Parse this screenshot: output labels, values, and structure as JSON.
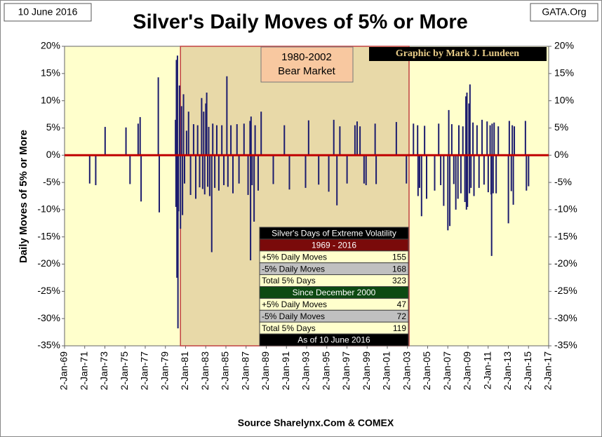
{
  "chart_data": {
    "type": "spike",
    "title": "Silver's Daily Moves of 5% or More",
    "date_label": "10 June 2016",
    "site_label": "GATA.Org",
    "credit": "Graphic by Mark J. Lundeen",
    "source": "Source Sharelynx.Com & COMEX",
    "ylabel": "Daily Moves of 5% or More",
    "bear_market": {
      "line1": "1980-2002",
      "line2": "Bear Market",
      "start": "1980-07-01",
      "end": "2003-03-01",
      "color": "#e8d9a8"
    },
    "color": "#1c1c6e",
    "zero_color": "#c00000",
    "background": "#ffffcc",
    "grid": false,
    "xlim": [
      "1969-01-02",
      "2017-01-02"
    ],
    "xticks": [
      "1969-01-02",
      "1971-01-02",
      "1973-01-02",
      "1975-01-02",
      "1977-01-02",
      "1979-01-02",
      "1981-01-02",
      "1983-01-02",
      "1985-01-02",
      "1987-01-02",
      "1989-01-02",
      "1991-01-02",
      "1993-01-02",
      "1995-01-02",
      "1997-01-02",
      "1999-01-02",
      "2001-01-02",
      "2003-01-02",
      "2005-01-02",
      "2007-01-02",
      "2009-01-02",
      "2011-01-02",
      "2013-01-02",
      "2015-01-02",
      "2017-01-02"
    ],
    "xtick_labels": [
      "2-Jan-69",
      "2-Jan-71",
      "2-Jan-73",
      "2-Jan-75",
      "2-Jan-77",
      "2-Jan-79",
      "2-Jan-81",
      "2-Jan-83",
      "2-Jan-85",
      "2-Jan-87",
      "2-Jan-89",
      "2-Jan-91",
      "2-Jan-93",
      "2-Jan-95",
      "2-Jan-97",
      "2-Jan-99",
      "2-Jan-01",
      "2-Jan-03",
      "2-Jan-05",
      "2-Jan-07",
      "2-Jan-09",
      "2-Jan-11",
      "2-Jan-13",
      "2-Jan-15",
      "2-Jan-17"
    ],
    "ylim": [
      -35,
      20
    ],
    "yticks": [
      {
        "value": 20,
        "label": "20%"
      },
      {
        "value": 15,
        "label": "15%"
      },
      {
        "value": 10,
        "label": "10%"
      },
      {
        "value": 5,
        "label": "5%"
      },
      {
        "value": 0,
        "label": "0%"
      },
      {
        "value": -5,
        "label": "-5%"
      },
      {
        "value": -10,
        "label": "-10%"
      },
      {
        "value": -15,
        "label": "-15%"
      },
      {
        "value": -20,
        "label": "-20%"
      },
      {
        "value": -25,
        "label": "-25%"
      },
      {
        "value": -30,
        "label": "-30%"
      },
      {
        "value": -35,
        "label": "-35%"
      }
    ],
    "x": [
      "1971-07-01",
      "1972-02-05",
      "1973-01-10",
      "1975-02-05",
      "1975-07-01",
      "1976-04-20",
      "1976-07-01",
      "1976-08-05",
      "1978-04-20",
      "1978-05-25",
      "1980-01-03",
      "1980-01-21",
      "1980-02-06",
      "1980-02-25",
      "1980-03-14",
      "1980-04-01",
      "1980-04-20",
      "1980-05-26",
      "1980-07-01",
      "1980-08-07",
      "1980-09-13",
      "1980-10-19",
      "1980-11-25",
      "1981-02-06",
      "1981-04-20",
      "1981-07-01",
      "1981-10-19",
      "1982-01-05",
      "1982-03-15",
      "1982-05-26",
      "1982-08-07",
      "1982-09-13",
      "1982-10-19",
      "1982-11-25",
      "1983-01-05",
      "1983-02-06",
      "1983-03-15",
      "1983-04-20",
      "1983-05-26",
      "1983-08-07",
      "1983-09-13",
      "1983-11-25",
      "1984-02-06",
      "1984-04-20",
      "1984-08-07",
      "1984-10-19",
      "1985-02-06",
      "1985-03-15",
      "1985-07-01",
      "1985-09-13",
      "1986-02-06",
      "1986-04-20",
      "1986-10-19",
      "1987-03-15",
      "1987-05-26",
      "1987-06-13",
      "1987-07-01",
      "1987-08-07",
      "1987-10-19",
      "1987-11-25",
      "1988-03-15",
      "1988-07-01",
      "1989-09-13",
      "1990-10-19",
      "1991-04-20",
      "1992-11-25",
      "1993-03-15",
      "1994-03-15",
      "1995-03-15",
      "1995-09-13",
      "1996-01-05",
      "1996-04-20",
      "1997-01-05",
      "1997-10-19",
      "1998-01-05",
      "1998-04-20",
      "1998-09-13",
      "1998-11-25",
      "1999-10-19",
      "1999-11-25",
      "2001-11-25",
      "2002-11-25",
      "2003-08-07",
      "2004-01-05",
      "2004-01-21",
      "2004-03-15",
      "2004-05-26",
      "2004-09-13",
      "2004-11-25",
      "2005-09-13",
      "2006-02-06",
      "2006-04-20",
      "2006-08-07",
      "2007-01-05",
      "2007-02-06",
      "2007-03-15",
      "2007-05-26",
      "2007-08-07",
      "2007-10-19",
      "2008-01-05",
      "2008-02-06",
      "2008-04-20",
      "2008-07-01",
      "2008-09-13",
      "2008-10-19",
      "2008-11-07",
      "2008-11-25",
      "2008-12-13",
      "2009-02-06",
      "2009-02-25",
      "2009-03-15",
      "2009-04-20",
      "2009-07-01",
      "2009-08-07",
      "2009-11-25",
      "2010-02-06",
      "2010-05-26",
      "2010-08-07",
      "2010-11-25",
      "2011-01-05",
      "2011-03-15",
      "2011-04-20",
      "2011-05-08",
      "2011-05-26",
      "2011-07-01",
      "2011-08-07",
      "2011-10-19",
      "2012-01-05",
      "2013-01-05",
      "2013-02-06",
      "2013-04-20",
      "2013-05-26",
      "2013-07-01",
      "2013-08-07",
      "2014-09-13",
      "2014-10-19",
      "2015-01-05"
    ],
    "values": [
      -5.2,
      -5.5,
      5.2,
      5.1,
      -5.3,
      5.8,
      7,
      -8.5,
      14.3,
      -10.5,
      6.5,
      -9.5,
      17.5,
      -22.5,
      18.3,
      -31.8,
      -10.3,
      12.8,
      -13.5,
      9,
      -11,
      11.2,
      -5.2,
      4.5,
      8,
      -7.3,
      5.7,
      -8,
      5.5,
      -5.9,
      10.5,
      -6.2,
      8,
      -7.2,
      9.5,
      11.5,
      -5.8,
      5.2,
      -7.5,
      -17.8,
      5.8,
      -6,
      5.5,
      -6.5,
      5.5,
      -5.5,
      14.5,
      -5.8,
      5.5,
      -7,
      5.7,
      -5.2,
      5.8,
      -7.3,
      6.3,
      -19.3,
      7.1,
      -5.5,
      -12.2,
      5.5,
      -6.5,
      8,
      -5.3,
      5.5,
      -6.3,
      -6,
      6.4,
      -5.4,
      -6.7,
      6.5,
      -9.2,
      5.3,
      -5.2,
      5.5,
      6.2,
      5.3,
      -5.2,
      -5.5,
      5.8,
      -5.3,
      6.1,
      -5.2,
      5.8,
      5.5,
      -7.5,
      -6,
      -11.2,
      5.4,
      -8,
      -6.5,
      5.8,
      -5.5,
      -9.3,
      -13.8,
      8.3,
      -13,
      5.7,
      -5.3,
      -10,
      -8,
      5.5,
      -7,
      5.3,
      -8.6,
      10.8,
      -10,
      11.5,
      -9.5,
      9.5,
      -7,
      13,
      -6,
      6,
      -7.5,
      5.5,
      -6,
      6.5,
      -5.4,
      6.2,
      -6.8,
      5.5,
      -7.2,
      -18.5,
      5.8,
      -7,
      6,
      -7,
      5.3,
      -12.5,
      6.3,
      -6.6,
      5.5,
      -9.1,
      5.3,
      6.3,
      -6.5,
      -5.7
    ],
    "table": {
      "title": "Silver's Days of Extreme Volatility",
      "sections": [
        {
          "heading": "1969 - 2016",
          "color": "#7a0a0a",
          "rows": [
            [
              "+5% Daily Moves",
              155
            ],
            [
              "-5% Daily Moves",
              168
            ],
            [
              "Total 5% Days",
              323
            ]
          ]
        },
        {
          "heading": "Since December 2000",
          "color": "#0d4a12",
          "rows": [
            [
              "+5% Daily Moves",
              47
            ],
            [
              "-5% Daily Moves",
              72
            ],
            [
              "Total 5% Days",
              119
            ]
          ]
        }
      ],
      "footer": "As of 10  June 2016"
    }
  }
}
